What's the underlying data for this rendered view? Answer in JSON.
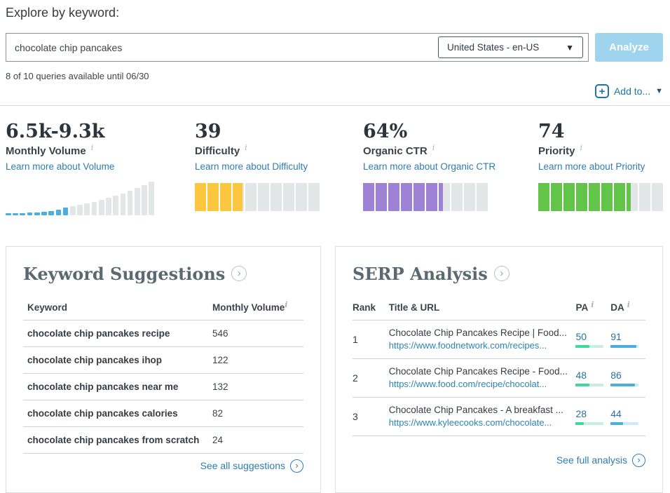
{
  "page": {
    "title": "Explore by keyword:"
  },
  "search": {
    "value": "chocolate chip pancakes",
    "locale": "United States - en-US",
    "analyze_label": "Analyze",
    "quota_text": "8 of 10 queries available until 06/30",
    "add_to_label": "Add to..."
  },
  "metrics": [
    {
      "value": "6.5k-9.3k",
      "label": "Monthly Volume",
      "link": "Learn more about Volume"
    },
    {
      "value": "39",
      "label": "Difficulty",
      "link": "Learn more about Difficulty",
      "score": 39,
      "color": "#fdc63f"
    },
    {
      "value": "64%",
      "label": "Organic CTR",
      "link": "Learn more about Organic CTR",
      "score": 64,
      "color": "#9d82d6"
    },
    {
      "value": "74",
      "label": "Priority",
      "link": "Learn more about Priority",
      "score": 74,
      "color": "#62c54a"
    }
  ],
  "volume_chart": {
    "type": "bar",
    "values": [
      3,
      3,
      3,
      4,
      4,
      5,
      6,
      8,
      11,
      13,
      15,
      17,
      19,
      22,
      25,
      28,
      31,
      35,
      39,
      43,
      48
    ],
    "filled_count": 9,
    "filled_color": "#4aaede",
    "empty_color": "#e2e6e7",
    "max": 48
  },
  "keyword_suggestions": {
    "title": "Keyword Suggestions",
    "columns": {
      "keyword": "Keyword",
      "volume": "Monthly Volume"
    },
    "rows": [
      {
        "keyword": "chocolate chip pancakes recipe",
        "volume": "546"
      },
      {
        "keyword": "chocolate chip pancakes ihop",
        "volume": "122"
      },
      {
        "keyword": "chocolate chip pancakes near me",
        "volume": "132"
      },
      {
        "keyword": "chocolate chip pancakes calories",
        "volume": "82"
      },
      {
        "keyword": "chocolate chip pancakes from scratch",
        "volume": "24"
      }
    ],
    "footer_link": "See all suggestions"
  },
  "serp_analysis": {
    "title": "SERP Analysis",
    "columns": {
      "rank": "Rank",
      "title_url": "Title & URL",
      "pa": "PA",
      "da": "DA"
    },
    "pa_bar_color": "#3fd9a0",
    "pa_track_color": "#c5f0e0",
    "da_bar_color": "#49ade0",
    "da_track_color": "#c9eaf6",
    "rows": [
      {
        "rank": "1",
        "title": "Chocolate Chip Pancakes Recipe | Food...",
        "url": "https://www.foodnetwork.com/recipes...",
        "pa": 50,
        "da": 91
      },
      {
        "rank": "2",
        "title": "Chocolate Chip Pancakes Recipe - Food...",
        "url": "https://www.food.com/recipe/chocolat...",
        "pa": 48,
        "da": 86
      },
      {
        "rank": "3",
        "title": "Chocolate Chip Pancakes - A breakfast ...",
        "url": "https://www.kyleecooks.com/chocolate...",
        "pa": 28,
        "da": 44
      }
    ],
    "footer_link": "See full analysis"
  }
}
